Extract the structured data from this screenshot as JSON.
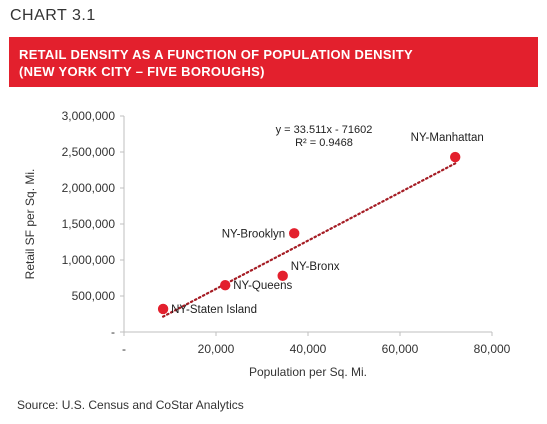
{
  "chart_number": "CHART 3.1",
  "title_lines": [
    "RETAIL DENSITY AS A FUNCTION OF POPULATION DENSITY",
    "(NEW YORK CITY – FIVE BOROUGHS)"
  ],
  "source": "Source: U.S. Census and CoStar Analytics",
  "colors": {
    "accent": "#e3202d",
    "point": "#e3202d",
    "trendline": "#a51c24"
  },
  "chart_data": {
    "type": "scatter",
    "xlabel": "Population per Sq. Mi.",
    "ylabel": "Retail SF per Sq. Mi.",
    "xlim": [
      0,
      80000
    ],
    "ylim": [
      0,
      3000000
    ],
    "x_ticks": [
      0,
      20000,
      40000,
      60000,
      80000
    ],
    "x_tick_labels": [
      "-",
      "20,000",
      "40,000",
      "60,000",
      "80,000"
    ],
    "y_ticks": [
      0,
      500000,
      1000000,
      1500000,
      2000000,
      2500000,
      3000000
    ],
    "y_tick_labels": [
      "-",
      "500,000",
      "1,000,000",
      "1,500,000",
      "2,000,000",
      "2,500,000",
      "3,000,000"
    ],
    "grid": false,
    "points": [
      {
        "label": "NY-Manhattan",
        "x": 72000,
        "y": 2430000,
        "label_pos": "above"
      },
      {
        "label": "NY-Brooklyn",
        "x": 37000,
        "y": 1370000,
        "label_pos": "left"
      },
      {
        "label": "NY-Bronx",
        "x": 34500,
        "y": 780000,
        "label_pos": "upper-right"
      },
      {
        "label": "NY-Queens",
        "x": 22000,
        "y": 650000,
        "label_pos": "right"
      },
      {
        "label": "NY-Staten Island",
        "x": 8500,
        "y": 320000,
        "label_pos": "right"
      }
    ],
    "trendline": {
      "slope": 33.511,
      "intercept": -71602,
      "x_range": [
        8500,
        72000
      ],
      "equation": "y = 33.511x - 71602",
      "r_squared": "R² = 0.9468"
    }
  }
}
